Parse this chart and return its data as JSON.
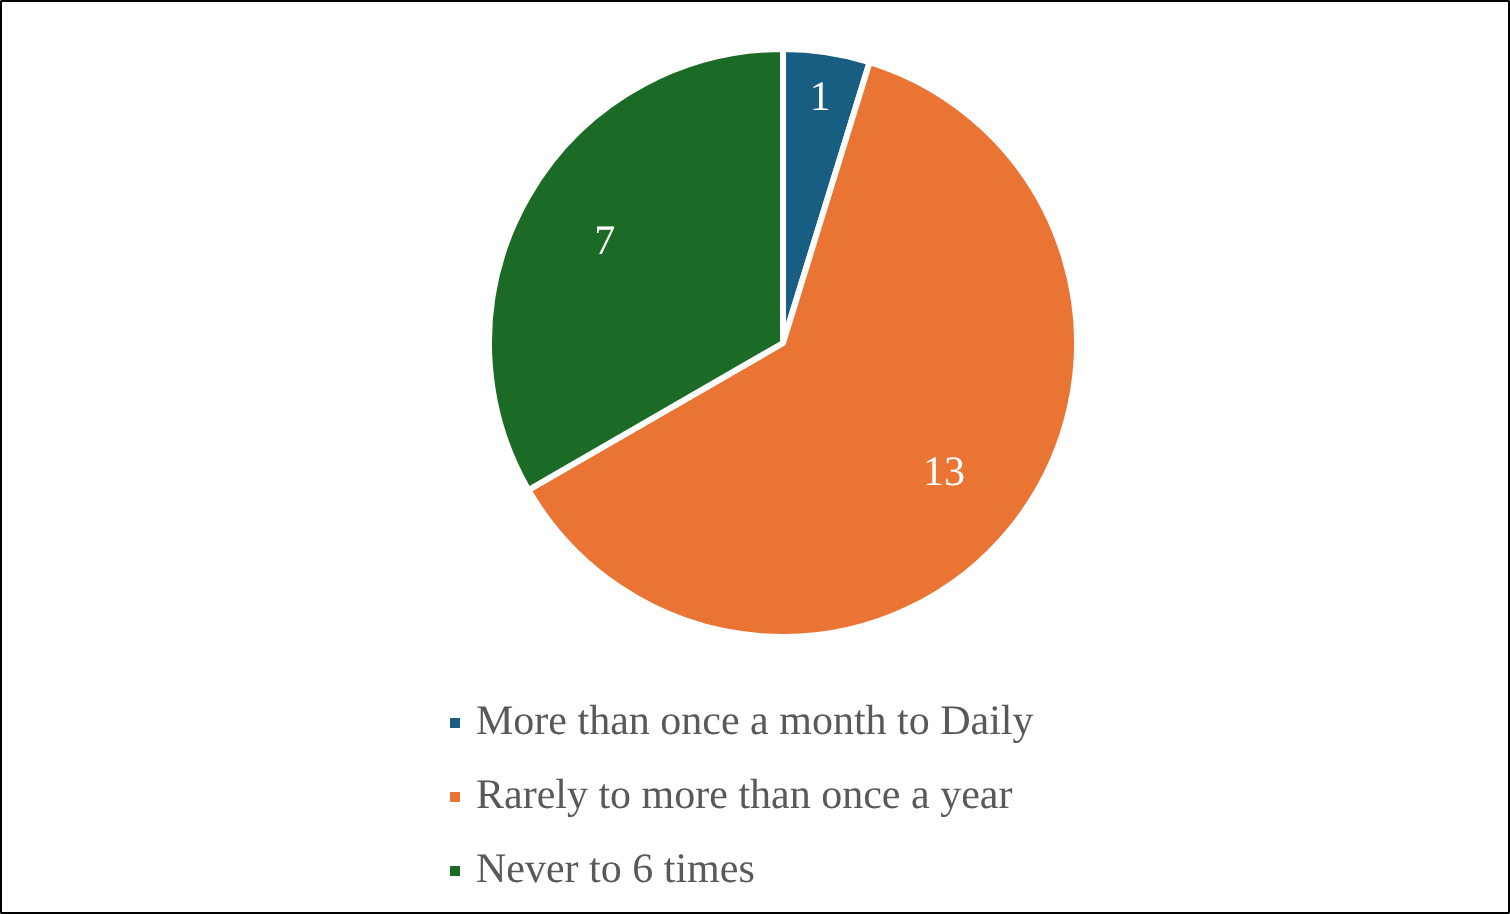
{
  "chart_data": {
    "type": "pie",
    "categories": [
      "More than once a month to Daily",
      "Rarely to more than once a year",
      "Never to 6 times"
    ],
    "values": [
      1,
      13,
      7
    ],
    "colors": [
      "#175e82",
      "#e97434",
      "#1b6b27"
    ],
    "data_labels": true,
    "legend": "bottom"
  }
}
